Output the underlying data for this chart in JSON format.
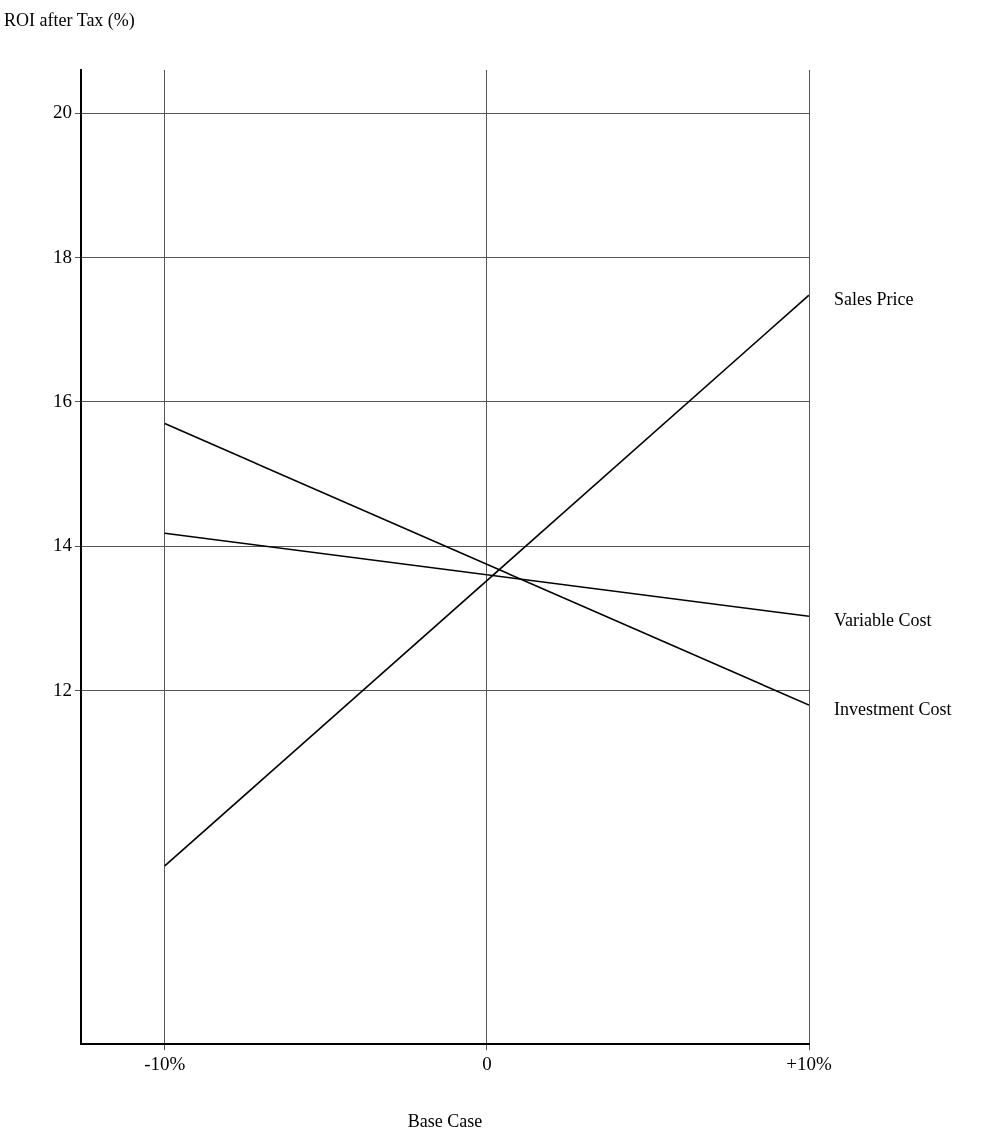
{
  "chart_data": {
    "type": "line",
    "ylabel": "ROI after Tax (%)",
    "xlabel": "Base Case",
    "xlim": [
      -12.6,
      10
    ],
    "ylim": [
      7.1,
      20.6
    ],
    "xticks": [
      {
        "value": -10,
        "label": "-10%"
      },
      {
        "value": 0,
        "label": "0"
      },
      {
        "value": 10,
        "label": "+10%"
      }
    ],
    "yticks": [
      12,
      14,
      16,
      18,
      20
    ],
    "grid": true,
    "legend": false,
    "marker": "none",
    "line_style": "solid",
    "x": [
      -10,
      10
    ],
    "series": [
      {
        "name": "Sales Price",
        "color": "#000000",
        "values": [
          9.57,
          17.48
        ]
      },
      {
        "name": "Variable Cost",
        "color": "#000000",
        "values": [
          14.18,
          13.03
        ]
      },
      {
        "name": "Investment Cost",
        "color": "#000000",
        "values": [
          15.7,
          11.8
        ]
      }
    ]
  }
}
